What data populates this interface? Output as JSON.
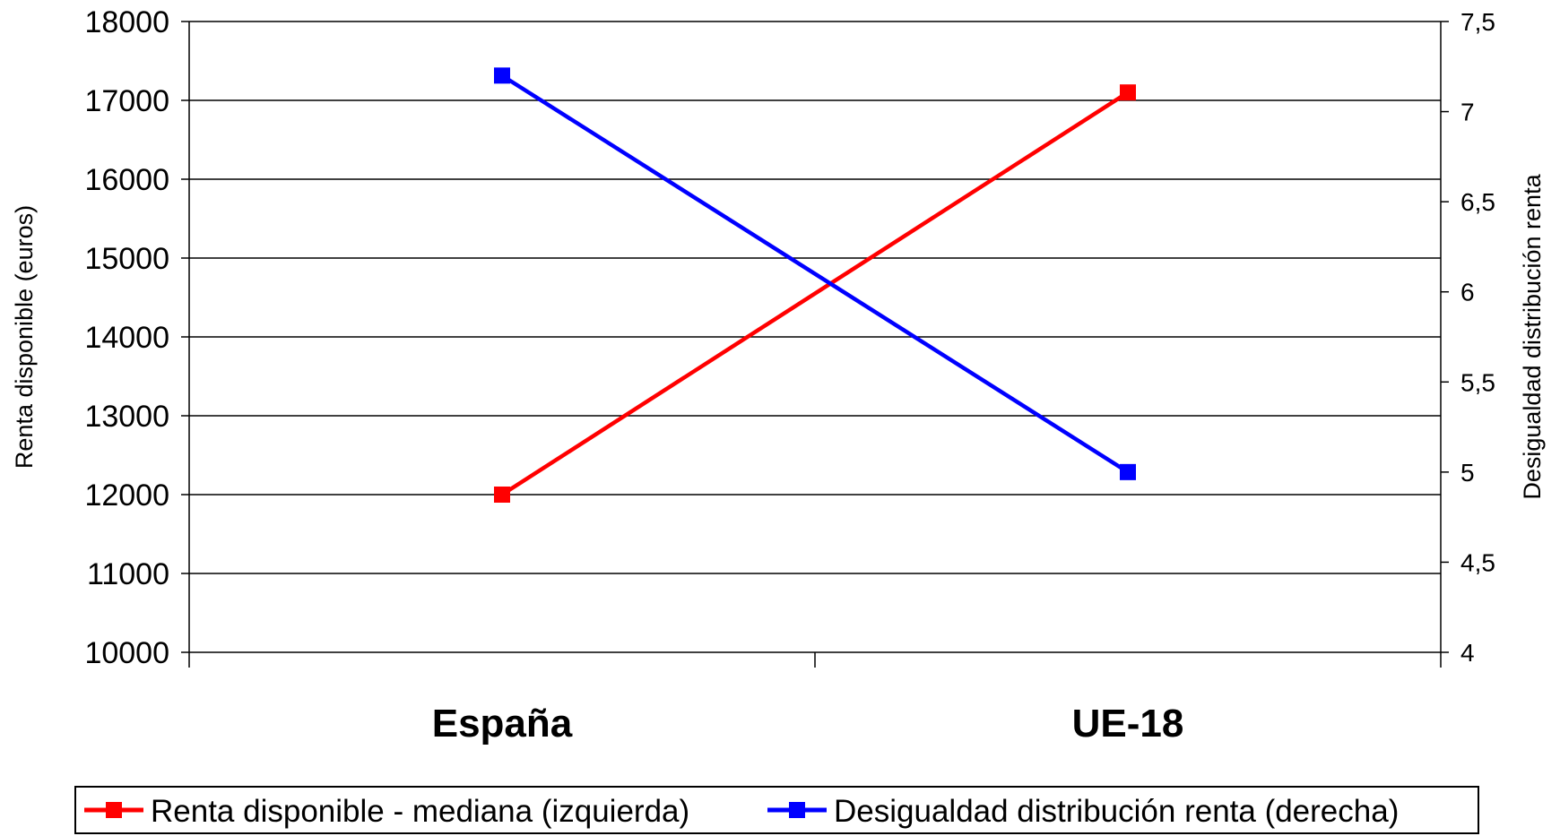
{
  "chart_data": {
    "type": "line",
    "categories": [
      "España",
      "UE-18"
    ],
    "series": [
      {
        "name": "Renta disponible - mediana (izquierda)",
        "axis": "left",
        "color": "#ff0000",
        "values": [
          12000,
          17100
        ]
      },
      {
        "name": "Desigualdad distribución renta (derecha)",
        "axis": "right",
        "color": "#0000ff",
        "values": [
          7.2,
          5.0
        ]
      }
    ],
    "ylabel": "Renta disponible (euros)",
    "y2label": "Desigualdad distribución renta",
    "ylim": [
      10000,
      18000
    ],
    "y2lim": [
      4,
      7.5
    ],
    "yticks": [
      "10000",
      "11000",
      "12000",
      "13000",
      "14000",
      "15000",
      "16000",
      "17000",
      "18000"
    ],
    "y2ticks": [
      "4",
      "4,5",
      "5",
      "5,5",
      "6",
      "6,5",
      "7",
      "7,5"
    ],
    "grid": true,
    "legend_position": "bottom",
    "marker": "square"
  }
}
